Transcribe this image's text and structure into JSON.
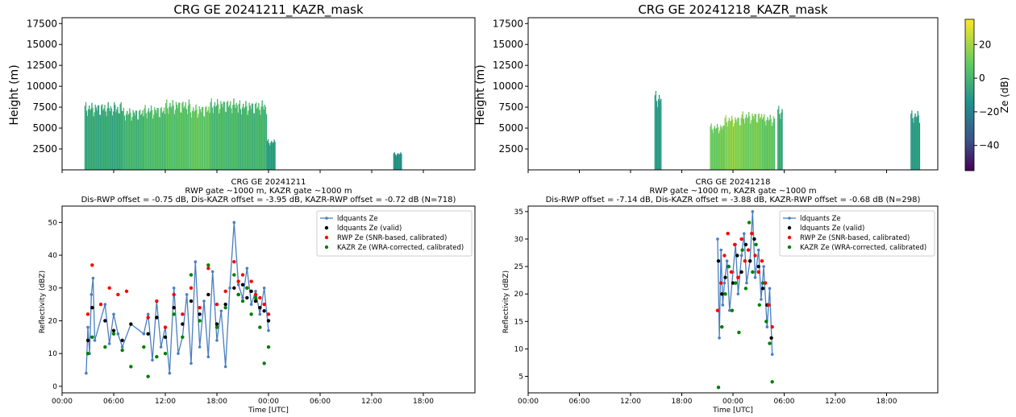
{
  "colorbar": {
    "label": "Ze (dB)",
    "ticks": [
      "20",
      "0",
      "−20",
      "−40"
    ],
    "tick_values": [
      20,
      0,
      -20,
      -40
    ],
    "range": [
      -55,
      35
    ]
  },
  "legend": {
    "entries": [
      "ldquants Ze",
      "ldquants Ze (valid)",
      "RWP Ze (SNR-based, calibrated)",
      "KAZR Ze (WRA-corrected, calibrated)"
    ],
    "colors": [
      "#4a7fc1",
      "#000000",
      "#ff0000",
      "#008000"
    ]
  },
  "colors": {
    "line": "#4a7fc1",
    "valid": "#000000",
    "rwp": "#ff0000",
    "kazr": "#008000"
  },
  "chart_data": [
    {
      "type": "heatmap",
      "title": "CRG GE 20241211_KAZR_mask",
      "ylabel": "Height (m)",
      "yticks": [
        "17500",
        "15000",
        "12500",
        "10000",
        "7500",
        "5000",
        "2500"
      ],
      "ytick_values": [
        17500,
        15000,
        12500,
        10000,
        7500,
        5000,
        2500
      ],
      "ylim": [
        0,
        18200
      ],
      "colorbar_label": "Ze (dB)",
      "echo_segments": [
        {
          "t0": 2.6,
          "t1": 7.0,
          "top": 7300,
          "z": -5
        },
        {
          "t0": 7.0,
          "t1": 9.5,
          "top": 6700,
          "z": 0
        },
        {
          "t0": 9.5,
          "t1": 12.0,
          "top": 7000,
          "z": 3
        },
        {
          "t0": 12.0,
          "t1": 14.7,
          "top": 7600,
          "z": 5
        },
        {
          "t0": 14.7,
          "t1": 17.2,
          "top": 7100,
          "z": 8
        },
        {
          "t0": 17.2,
          "t1": 20.5,
          "top": 7700,
          "z": 2
        },
        {
          "t0": 20.5,
          "t1": 23.8,
          "top": 7500,
          "z": 0
        },
        {
          "t0": 23.8,
          "t1": 24.8,
          "top": 3300,
          "z": -10
        },
        {
          "t0": 38.5,
          "t1": 39.5,
          "top": 1900,
          "z": -15
        }
      ]
    },
    {
      "type": "heatmap",
      "title": "CRG GE 20241218_KAZR_mask",
      "ylabel": "Height (m)",
      "yticks": [
        "17500",
        "15000",
        "12500",
        "10000",
        "7500",
        "5000",
        "2500"
      ],
      "ytick_values": [
        17500,
        15000,
        12500,
        10000,
        7500,
        5000,
        2500
      ],
      "ylim": [
        0,
        18200
      ],
      "colorbar_label": "Ze (dB)",
      "echo_segments": [
        {
          "t0": 14.8,
          "t1": 15.5,
          "top": 8500,
          "z": -10
        },
        {
          "t0": 21.3,
          "t1": 23.0,
          "top": 5000,
          "z": 10
        },
        {
          "t0": 23.0,
          "t1": 25.0,
          "top": 5900,
          "z": 15
        },
        {
          "t0": 25.0,
          "t1": 27.5,
          "top": 6300,
          "z": 12
        },
        {
          "t0": 27.5,
          "t1": 28.9,
          "top": 6000,
          "z": 8
        },
        {
          "t0": 29.2,
          "t1": 29.8,
          "top": 6900,
          "z": -5
        },
        {
          "t0": 44.8,
          "t1": 45.9,
          "top": 6400,
          "z": -10
        }
      ]
    },
    {
      "type": "scatter",
      "title": "CRG GE 20241211",
      "subtitle": "RWP gate ~1000 m, KAZR gate ~1000 m",
      "subtitle2": "Dis-RWP offset = -0.75 dB, Dis-KAZR offset = -3.95 dB, KAZR-RWP offset = -0.72 dB (N=718)",
      "xlabel": "Time [UTC]",
      "ylabel": "Reflectivity (dBZ)",
      "xticks": [
        "00:00",
        "06:00",
        "12:00",
        "18:00",
        "00:00",
        "06:00",
        "12:00",
        "18:00"
      ],
      "xtick_values": [
        0,
        6,
        12,
        18,
        24,
        30,
        36,
        42
      ],
      "xlim": [
        0,
        48
      ],
      "yticks": [
        "0",
        "10",
        "20",
        "30",
        "40",
        "50"
      ],
      "ytick_values": [
        0,
        10,
        20,
        30,
        40,
        50
      ],
      "ylim": [
        -2,
        55
      ],
      "series": [
        {
          "name": "ldquants Ze",
          "x": [
            2.8,
            3.0,
            3.2,
            3.4,
            3.6,
            3.8,
            5.0,
            5.5,
            6.0,
            6.5,
            7.0,
            8.0,
            9.5,
            10.0,
            10.5,
            11.0,
            11.5,
            12.0,
            12.5,
            13.0,
            13.5,
            14.0,
            14.5,
            15.0,
            15.5,
            16.0,
            16.5,
            17.0,
            17.5,
            18.0,
            18.5,
            19.0,
            19.5,
            20.0,
            20.5,
            21.0,
            21.5,
            22.0,
            22.5,
            23.0,
            23.5,
            24.0
          ],
          "y": [
            4,
            18,
            10,
            28,
            33,
            14,
            25,
            13,
            22,
            16,
            12,
            19,
            16,
            22,
            8,
            26,
            12,
            18,
            4,
            30,
            10,
            15,
            28,
            7,
            38,
            12,
            26,
            9,
            35,
            14,
            23,
            6,
            30,
            50,
            31,
            27,
            36,
            25,
            29,
            22,
            30,
            17
          ]
        },
        {
          "name": "ldquants Ze (valid)",
          "x": [
            3.0,
            3.5,
            5.0,
            6.0,
            7.0,
            8.0,
            10.0,
            11.0,
            12.0,
            13.0,
            14.0,
            15.0,
            16.0,
            17.0,
            18.0,
            19.0,
            20.0,
            20.5,
            21.0,
            21.5,
            22.0,
            22.5,
            23.0,
            23.5,
            24.0
          ],
          "y": [
            14,
            24,
            20,
            17,
            14,
            19,
            16,
            21,
            15,
            24,
            19,
            26,
            22,
            28,
            19,
            25,
            30,
            28,
            31,
            27,
            29,
            26,
            24,
            23,
            20
          ]
        },
        {
          "name": "RWP Ze (SNR-based, calibrated)",
          "x": [
            3.0,
            3.5,
            4.5,
            5.5,
            6.5,
            7.5,
            10.0,
            11.0,
            12.0,
            13.0,
            14.0,
            15.0,
            16.0,
            17.0,
            18.0,
            19.0,
            20.0,
            20.5,
            21.0,
            21.5,
            22.0,
            22.5,
            23.0,
            23.5,
            24.0
          ],
          "y": [
            22,
            37,
            25,
            30,
            28,
            29,
            21,
            26,
            18,
            28,
            22,
            30,
            24,
            36,
            25,
            29,
            38,
            32,
            34,
            30,
            32,
            28,
            27,
            25,
            22
          ]
        },
        {
          "name": "KAZR Ze (WRA-corrected, calibrated)",
          "x": [
            3.0,
            3.5,
            5.0,
            6.0,
            7.0,
            8.0,
            9.5,
            10.0,
            11.0,
            12.0,
            13.0,
            14.0,
            15.0,
            16.0,
            17.0,
            18.0,
            19.0,
            20.0,
            20.5,
            21.0,
            21.5,
            22.0,
            22.5,
            23.0,
            23.5,
            24.0
          ],
          "y": [
            10,
            15,
            12,
            16,
            11,
            6,
            12,
            3,
            9,
            10,
            22,
            15,
            34,
            20,
            37,
            18,
            24,
            34,
            28,
            26,
            30,
            22,
            27,
            18,
            7,
            12
          ]
        }
      ]
    },
    {
      "type": "scatter",
      "title": "CRG GE 20241218",
      "subtitle": "RWP gate ~1000 m, KAZR gate ~1000 m",
      "subtitle2": "Dis-RWP offset = -7.14 dB, Dis-KAZR offset = -3.88 dB, KAZR-RWP offset = -0.68 dB (N=298)",
      "xlabel": "Time [UTC]",
      "ylabel": "Reflectivity (dBZ)",
      "xticks": [
        "00:00",
        "06:00",
        "12:00",
        "18:00",
        "00:00",
        "06:00",
        "12:00",
        "18:00"
      ],
      "xtick_values": [
        0,
        6,
        12,
        18,
        24,
        30,
        36,
        42
      ],
      "xlim": [
        0,
        48
      ],
      "yticks": [
        "5",
        "10",
        "15",
        "20",
        "25",
        "30",
        "35"
      ],
      "ytick_values": [
        5,
        10,
        15,
        20,
        25,
        30,
        35
      ],
      "ylim": [
        2,
        36
      ],
      "series": [
        {
          "name": "ldquants Ze",
          "x": [
            22.2,
            22.4,
            22.6,
            22.8,
            23.0,
            23.3,
            23.6,
            24.0,
            24.3,
            24.6,
            25.0,
            25.3,
            25.6,
            26.0,
            26.3,
            26.6,
            27.0,
            27.3,
            27.6,
            28.0,
            28.3,
            28.6
          ],
          "y": [
            30,
            12,
            28,
            18,
            22,
            26,
            17,
            24,
            29,
            20,
            27,
            31,
            22,
            26,
            35,
            23,
            28,
            19,
            25,
            14,
            21,
            9
          ]
        },
        {
          "name": "ldquants Ze (valid)",
          "x": [
            22.3,
            22.7,
            23.1,
            23.5,
            24.0,
            24.5,
            25.0,
            25.5,
            26.0,
            26.5,
            27.0,
            27.5,
            28.0,
            28.5
          ],
          "y": [
            26,
            20,
            23,
            25,
            22,
            27,
            24,
            29,
            26,
            30,
            25,
            21,
            18,
            12
          ]
        },
        {
          "name": "RWP Ze (SNR-based, calibrated)",
          "x": [
            22.2,
            22.6,
            23.0,
            23.4,
            23.8,
            24.2,
            24.6,
            25.0,
            25.4,
            25.8,
            26.2,
            26.6,
            27.0,
            27.4,
            27.8,
            28.2,
            28.6
          ],
          "y": [
            17,
            22,
            27,
            31,
            24,
            29,
            23,
            30,
            26,
            28,
            31,
            27,
            24,
            26,
            22,
            18,
            14
          ]
        },
        {
          "name": "KAZR Ze (WRA-corrected, calibrated)",
          "x": [
            22.3,
            22.7,
            23.1,
            23.5,
            23.9,
            24.3,
            24.7,
            25.1,
            25.5,
            25.9,
            26.3,
            26.7,
            27.1,
            27.5,
            27.9,
            28.3,
            28.6
          ],
          "y": [
            3,
            14,
            20,
            25,
            17,
            22,
            13,
            28,
            21,
            33,
            24,
            29,
            18,
            22,
            15,
            11,
            4
          ]
        }
      ]
    }
  ]
}
